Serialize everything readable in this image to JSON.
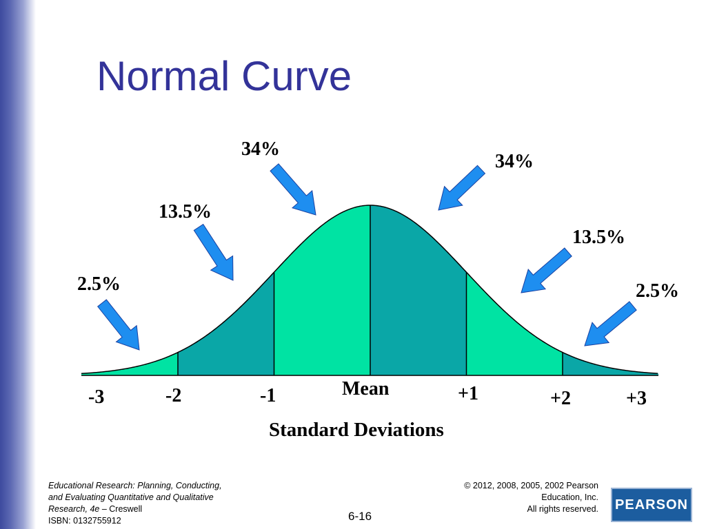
{
  "slide": {
    "title": "Normal Curve"
  },
  "colors": {
    "title": "#333399",
    "light_band": "#00e3a3",
    "dark_band": "#0aa7a7",
    "arrow": "#1e8ef0",
    "arrow_outline": "#1a40a0"
  },
  "diagram": {
    "percent_labels": [
      "2.5%",
      "13.5%",
      "34%",
      "34%",
      "13.5%",
      "2.5%"
    ],
    "axis_ticks": [
      "-3",
      "-2",
      "-1",
      "Mean",
      "+1",
      "+2",
      "+3"
    ],
    "axis_title": "Standard Deviations",
    "bands": [
      {
        "from": -3,
        "to": -2,
        "percent": "2.5%",
        "color": "light"
      },
      {
        "from": -2,
        "to": -1,
        "percent": "13.5%",
        "color": "dark"
      },
      {
        "from": -1,
        "to": 0,
        "percent": "34%",
        "color": "light"
      },
      {
        "from": 0,
        "to": 1,
        "percent": "34%",
        "color": "dark"
      },
      {
        "from": 1,
        "to": 2,
        "percent": "13.5%",
        "color": "light"
      },
      {
        "from": 2,
        "to": 3,
        "percent": "2.5%",
        "color": "dark"
      }
    ]
  },
  "footer": {
    "book_line1": "Educational Research:  Planning, Conducting,",
    "book_line2": "and Evaluating Quantitative and Qualitative",
    "book_line3_italic": "Research, 4e –",
    "book_line3_author": "Creswell",
    "isbn": "ISBN: 0132755912",
    "copyright_line1": "© 2012, 2008, 2005, 2002 Pearson",
    "copyright_line2": "Education, Inc.",
    "copyright_line3": "All rights reserved.",
    "page_number": "6-16",
    "logo_text": "PEARSON"
  }
}
